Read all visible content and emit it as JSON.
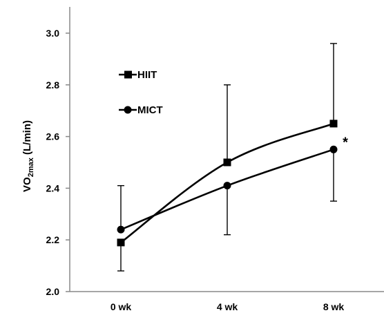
{
  "chart_data": {
    "type": "line",
    "categories": [
      "0 wk",
      "4 wk",
      "8 wk"
    ],
    "ylim": [
      2.0,
      3.0
    ],
    "yticks": [
      "2.0",
      "2.2",
      "2.4",
      "2.6",
      "2.8",
      "3.0"
    ],
    "ylabel": {
      "main": "VO",
      "sub": "2max",
      "unit": " (L/min)"
    },
    "grid": false,
    "legend_position": "upper-left",
    "series": [
      {
        "name": "HIIT",
        "marker": "square",
        "values": [
          2.19,
          2.5,
          2.65
        ],
        "err_low": [
          2.08,
          null,
          null
        ],
        "err_high": [
          null,
          2.8,
          2.96
        ]
      },
      {
        "name": "MICT",
        "marker": "circle",
        "values": [
          2.24,
          2.41,
          2.55
        ],
        "err_low": [
          null,
          2.22,
          2.35
        ],
        "err_high": [
          2.41,
          null,
          null
        ]
      }
    ],
    "annotations": [
      {
        "text": "*",
        "category": "8 wk",
        "series": "MICT"
      }
    ],
    "colors": {
      "line": "#000000",
      "axis": "#888888"
    }
  }
}
